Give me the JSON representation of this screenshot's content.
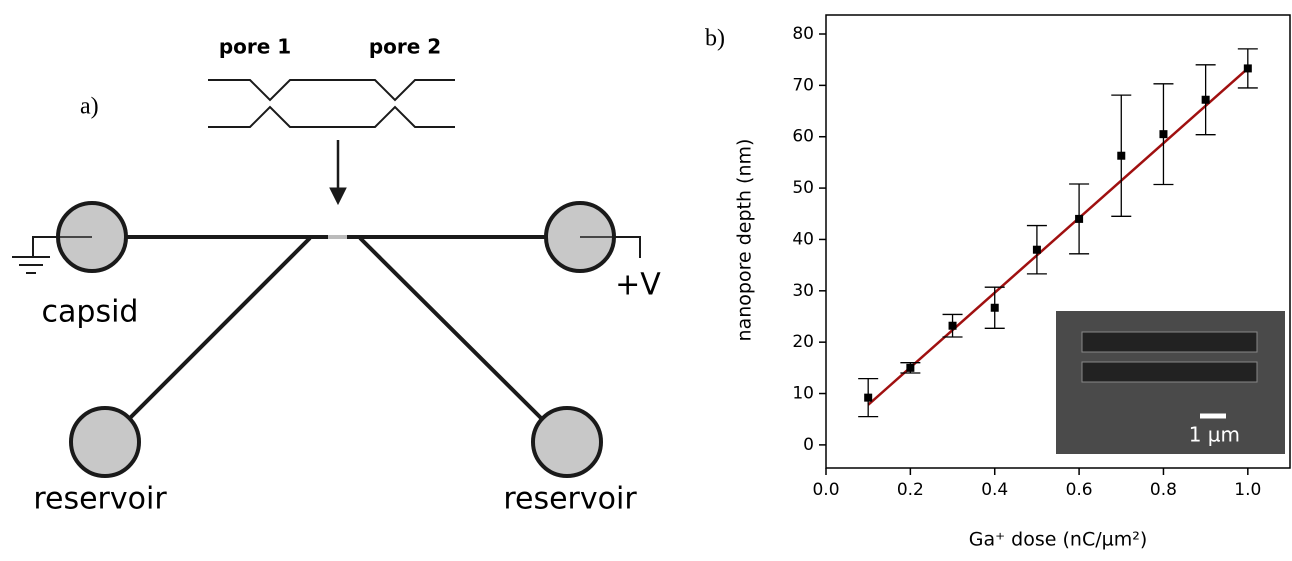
{
  "panel_labels": [
    "a)",
    "b)"
  ],
  "diagram": {
    "pore_labels": [
      "pore 1",
      "pore 2"
    ],
    "nodes": [
      "capsid",
      "reservoir",
      "reservoir"
    ],
    "voltage": "+V"
  },
  "chart_data": {
    "type": "scatter",
    "x_label": "Ga⁺ dose (nC/µm²)",
    "y_label": "nanopore depth (nm)",
    "x": [
      0.1,
      0.2,
      0.3,
      0.4,
      0.5,
      0.6,
      0.7,
      0.8,
      0.9,
      1.0
    ],
    "series": [
      {
        "color": "#000000",
        "values": [
          9.2,
          15,
          23.2,
          26.7,
          38,
          44,
          56.3,
          60.5,
          67.2,
          73.3
        ],
        "errors": [
          3.7,
          1,
          2.2,
          4,
          4.7,
          6.8,
          11.8,
          9.8,
          6.8,
          3.8
        ]
      }
    ],
    "fit_line": {
      "x": [
        0.1,
        1.0
      ],
      "values": [
        7.8,
        73.3
      ],
      "color": "#a01010"
    },
    "xlim": [
      0,
      1.1
    ],
    "ylim": [
      -4.5,
      83.7
    ],
    "xticks": [
      {
        "value": 0,
        "label": "0.0"
      },
      0.2,
      0.4,
      0.6,
      0.8,
      {
        "value": 1,
        "label": "1.0"
      }
    ],
    "yticks": [
      0,
      10,
      20,
      30,
      40,
      50,
      60,
      70,
      80
    ],
    "inset_label": "1 µm"
  }
}
